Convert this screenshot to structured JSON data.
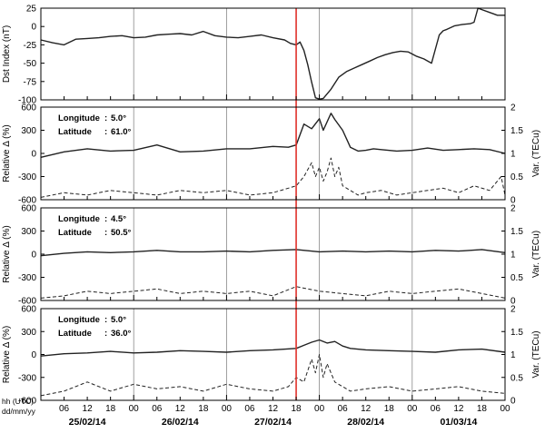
{
  "colors": {
    "event_line": "#e0302a",
    "series": "#222222",
    "grid": "#888888"
  },
  "x_ticks": [
    "06",
    "12",
    "18",
    "00",
    "06",
    "12",
    "18",
    "00",
    "06",
    "12",
    "18",
    "00",
    "06",
    "12",
    "18",
    "00",
    "06",
    "12",
    "18",
    "00"
  ],
  "date_labels": [
    "25/02/14",
    "26/02/14",
    "27/02/14",
    "28/02/14",
    "01/03/14"
  ],
  "time_label": {
    "line1": "hh (UTC)",
    "line2": "dd/mm/yy"
  },
  "chart_data": [
    {
      "type": "line",
      "ylabel": "Dst Index (nT)",
      "ylim": [
        -100,
        30
      ],
      "yticks": [
        "25",
        "0",
        "-25",
        "-50",
        "-75",
        "-100"
      ],
      "x_unit": "hours since 25/02/14 00 UTC",
      "xlim": [
        0,
        120
      ],
      "event_time": 66,
      "series": [
        {
          "x": [
            0,
            3,
            6,
            9,
            12,
            15,
            18,
            21,
            24,
            27,
            30,
            33,
            36,
            39,
            42,
            45,
            48,
            51,
            54,
            57,
            60,
            63,
            64.5,
            66,
            67,
            68,
            69,
            70,
            71,
            72,
            73,
            75,
            77,
            79,
            81,
            83,
            85,
            87,
            89,
            91,
            93,
            95,
            97,
            99,
            101,
            103,
            104,
            105,
            107,
            109,
            111,
            112,
            113,
            114,
            116,
            117,
            118,
            119,
            120
          ],
          "y": [
            -15,
            -19,
            -22,
            -14,
            -13,
            -12,
            -10,
            -9,
            -12,
            -11,
            -8,
            -7,
            -6,
            -8,
            -3,
            -9,
            -11,
            -12,
            -10,
            -8,
            -12,
            -15,
            -20,
            -22,
            -18,
            -30,
            -50,
            -75,
            -97,
            -99,
            -98,
            -85,
            -68,
            -60,
            -55,
            -50,
            -45,
            -40,
            -36,
            -33,
            -31,
            -32,
            -38,
            -42,
            -48,
            -8,
            -2,
            0,
            5,
            7,
            8,
            10,
            30,
            28,
            24,
            22,
            20,
            20,
            20
          ]
        }
      ]
    },
    {
      "type": "line",
      "annotation": {
        "longitude_label": "Longitude",
        "longitude_value": "5.0°",
        "latitude_label": "Latitude",
        "latitude_value": "61.0°"
      },
      "ylabel": "Relative Δ (%)",
      "ylim": [
        -600,
        600
      ],
      "yticks": [
        "600",
        "300",
        "0",
        "-300",
        "-600"
      ],
      "y2label": "Var. (TECu)",
      "y2lim": [
        0,
        2
      ],
      "y2ticks": [
        "2",
        "1.5",
        "1",
        "0.5",
        "0"
      ],
      "series": [
        {
          "style": "solid",
          "axis": "left",
          "x": [
            0,
            6,
            12,
            18,
            24,
            30,
            36,
            42,
            48,
            54,
            60,
            64,
            66,
            68,
            70,
            72,
            73,
            75,
            76,
            78,
            80,
            82,
            84,
            86,
            88,
            92,
            96,
            100,
            104,
            108,
            112,
            116,
            120
          ],
          "y": [
            -50,
            20,
            60,
            30,
            40,
            110,
            20,
            30,
            60,
            60,
            90,
            80,
            110,
            380,
            320,
            450,
            300,
            520,
            440,
            300,
            80,
            30,
            40,
            60,
            50,
            30,
            40,
            70,
            40,
            50,
            60,
            50,
            0
          ]
        },
        {
          "style": "dashed",
          "axis": "right",
          "x": [
            0,
            6,
            12,
            18,
            24,
            30,
            36,
            42,
            48,
            54,
            60,
            64,
            66,
            68,
            70,
            71,
            72,
            73,
            74,
            75,
            76,
            77,
            78,
            80,
            82,
            84,
            88,
            92,
            96,
            100,
            104,
            108,
            112,
            116,
            119,
            120
          ],
          "y": [
            0.05,
            0.15,
            0.1,
            0.2,
            0.15,
            0.1,
            0.2,
            0.15,
            0.2,
            0.1,
            0.15,
            0.25,
            0.3,
            0.5,
            0.8,
            0.5,
            0.7,
            0.4,
            0.6,
            0.9,
            0.5,
            0.7,
            0.3,
            0.2,
            0.1,
            0.15,
            0.2,
            0.1,
            0.15,
            0.2,
            0.25,
            0.15,
            0.3,
            0.2,
            0.5,
            0.1
          ]
        }
      ]
    },
    {
      "type": "line",
      "annotation": {
        "longitude_label": "Longitude",
        "longitude_value": "4.5°",
        "latitude_label": "Latitude",
        "latitude_value": "50.5°"
      },
      "ylabel": "Relative Δ (%)",
      "ylim": [
        -600,
        600
      ],
      "yticks": [
        "600",
        "300",
        "0",
        "-300",
        "-600"
      ],
      "y2label": "Var. (TECu)",
      "y2lim": [
        0,
        2
      ],
      "y2ticks": [
        "2",
        "1.5",
        "1",
        "0.5",
        "0"
      ],
      "series": [
        {
          "style": "solid",
          "axis": "left",
          "x": [
            0,
            6,
            12,
            18,
            24,
            30,
            36,
            42,
            48,
            54,
            60,
            66,
            72,
            78,
            84,
            90,
            96,
            102,
            108,
            114,
            120
          ],
          "y": [
            -20,
            10,
            30,
            20,
            30,
            50,
            30,
            30,
            40,
            30,
            50,
            60,
            30,
            40,
            30,
            40,
            30,
            50,
            40,
            60,
            20
          ]
        },
        {
          "style": "dashed",
          "axis": "right",
          "x": [
            0,
            6,
            12,
            18,
            24,
            30,
            36,
            42,
            48,
            54,
            60,
            66,
            72,
            78,
            84,
            90,
            96,
            102,
            108,
            114,
            120
          ],
          "y": [
            0.05,
            0.1,
            0.2,
            0.15,
            0.2,
            0.25,
            0.15,
            0.2,
            0.15,
            0.2,
            0.1,
            0.3,
            0.2,
            0.15,
            0.1,
            0.2,
            0.15,
            0.2,
            0.25,
            0.15,
            0.05
          ]
        }
      ]
    },
    {
      "type": "line",
      "annotation": {
        "longitude_label": "Longitude",
        "longitude_value": "5.0°",
        "latitude_label": "Latitude",
        "latitude_value": "36.0°"
      },
      "ylabel": "Relative Δ (%)",
      "ylim": [
        -600,
        600
      ],
      "yticks": [
        "600",
        "300",
        "0",
        "-300",
        "-600"
      ],
      "y2label": "Var. (TECu)",
      "y2lim": [
        0,
        2
      ],
      "y2ticks": [
        "2",
        "1.5",
        "1",
        "0.5",
        "0"
      ],
      "series": [
        {
          "style": "solid",
          "axis": "left",
          "x": [
            0,
            6,
            12,
            18,
            24,
            30,
            36,
            42,
            48,
            54,
            60,
            66,
            68,
            70,
            72,
            74,
            76,
            78,
            80,
            84,
            90,
            96,
            102,
            108,
            114,
            120
          ],
          "y": [
            -20,
            10,
            20,
            40,
            20,
            30,
            50,
            40,
            30,
            50,
            60,
            80,
            120,
            160,
            190,
            150,
            170,
            110,
            80,
            60,
            50,
            40,
            30,
            60,
            70,
            30
          ]
        },
        {
          "style": "dashed",
          "axis": "right",
          "x": [
            0,
            6,
            12,
            18,
            24,
            30,
            36,
            42,
            48,
            54,
            60,
            64,
            66,
            68,
            70,
            71,
            72,
            73,
            74,
            76,
            78,
            80,
            84,
            90,
            96,
            102,
            108,
            114,
            120
          ],
          "y": [
            0.1,
            0.2,
            0.4,
            0.2,
            0.35,
            0.25,
            0.3,
            0.2,
            0.35,
            0.25,
            0.2,
            0.3,
            0.5,
            0.4,
            0.9,
            0.6,
            1.0,
            0.5,
            0.8,
            0.4,
            0.3,
            0.2,
            0.25,
            0.3,
            0.2,
            0.25,
            0.3,
            0.2,
            0.15
          ]
        }
      ]
    }
  ]
}
